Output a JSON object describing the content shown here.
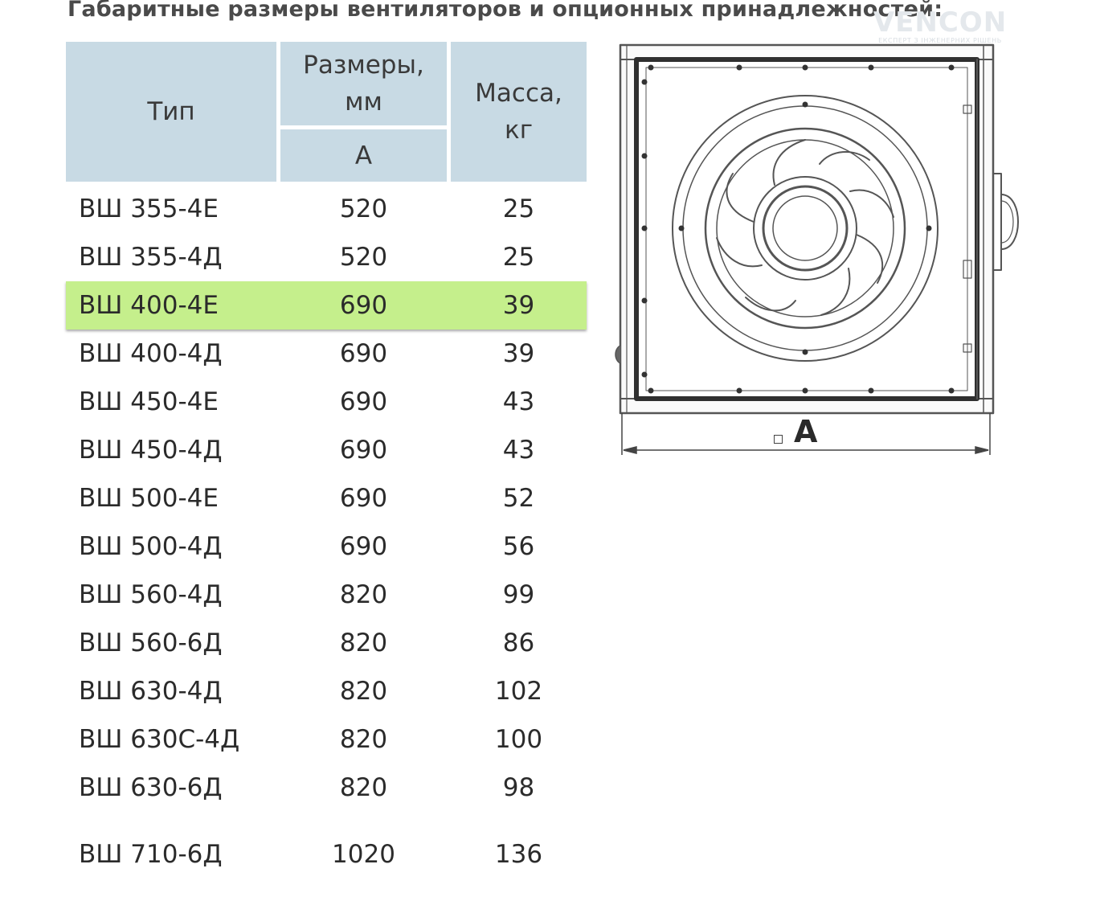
{
  "title": "Габаритные размеры вентиляторов и опционных принадлежностей:",
  "watermark": {
    "brand": "VENCON",
    "tagline": "ЕКСПЕРТ З ІНЖЕНЕРНИХ РІШЕНЬ"
  },
  "table": {
    "headers": {
      "type": "Тип",
      "dimensions_line1": "Размеры,",
      "dimensions_line2": "мм",
      "dimension_a": "А",
      "mass_line1": "Масса,",
      "mass_line2": "кг"
    },
    "highlight_color": "#c5ef8c",
    "header_color": "#c8dae4",
    "rows": [
      {
        "type": "ВШ 355-4Е",
        "a": "520",
        "mass": "25"
      },
      {
        "type": "ВШ 355-4Д",
        "a": "520",
        "mass": "25"
      },
      {
        "type": "ВШ 400-4Е",
        "a": "690",
        "mass": "39"
      },
      {
        "type": "ВШ 400-4Д",
        "a": "690",
        "mass": "39"
      },
      {
        "type": "ВШ 450-4Е",
        "a": "690",
        "mass": "43"
      },
      {
        "type": "ВШ 450-4Д",
        "a": "690",
        "mass": "43"
      },
      {
        "type": "ВШ 500-4Е",
        "a": "690",
        "mass": "52"
      },
      {
        "type": "ВШ 500-4Д",
        "a": "690",
        "mass": "56"
      },
      {
        "type": "ВШ 560-4Д",
        "a": "820",
        "mass": "99"
      },
      {
        "type": "ВШ 560-6Д",
        "a": "820",
        "mass": "86"
      },
      {
        "type": "ВШ 630-4Д",
        "a": "820",
        "mass": "102"
      },
      {
        "type": "ВШ 630С-4Д",
        "a": "820",
        "mass": "100"
      },
      {
        "type": "ВШ 630-6Д",
        "a": "820",
        "mass": "98"
      },
      {
        "type": "ВШ 710-6Д",
        "a": "1020",
        "mass": "136"
      }
    ]
  },
  "drawing": {
    "dimension_label": "A"
  }
}
